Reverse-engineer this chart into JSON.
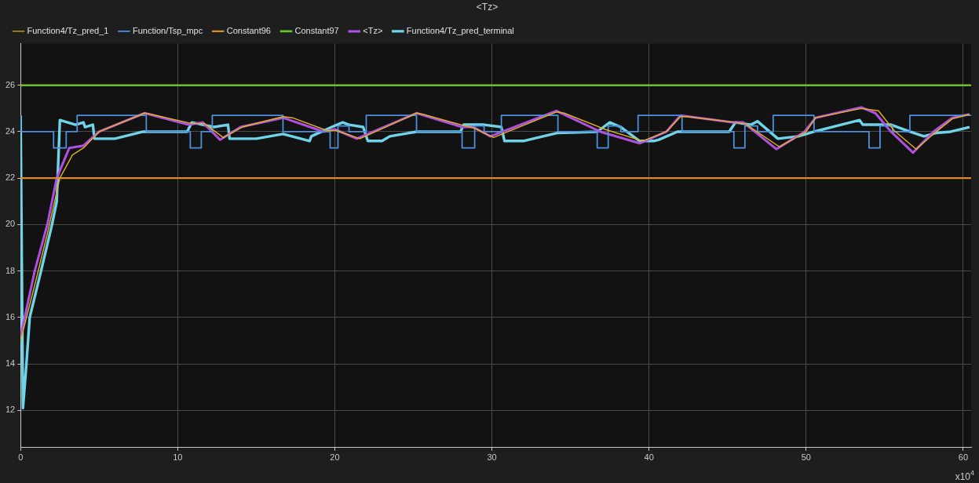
{
  "chart_data": {
    "type": "line",
    "title": "<Tz>",
    "annotations": [
      "x10$^{4}$"
    ],
    "xlim": [
      0,
      60.5
    ],
    "xticks": [
      0,
      10,
      20,
      30,
      40,
      50,
      60
    ],
    "ylim": [
      10.4,
      27.8
    ],
    "yticks": [
      12,
      14,
      16,
      18,
      20,
      22,
      24,
      26
    ],
    "grid": true,
    "legend": "top left",
    "marker": "none",
    "line_style": "solid",
    "series": [
      {
        "name": "Function4/Tz_pred_1",
        "color": "#e0b020",
        "x": [
          0,
          0.9,
          1.7,
          2.5,
          3.3,
          4.0,
          5.0,
          7.9,
          8.3,
          10.9,
          11.7,
          12.9,
          14.1,
          16.7,
          17.3,
          19.5,
          20.1,
          21.6,
          25.2,
          25.6,
          28.3,
          28.9,
          30.1,
          34.1,
          34.6,
          37.2,
          39.6,
          41.1,
          42.0,
          42.4,
          45.5,
          46.1,
          48.3,
          50.0,
          50.6,
          53.5,
          54.6,
          55.6,
          57.0,
          58.1,
          59.3,
          60.4
        ],
        "values": [
          15.0,
          17.4,
          19.6,
          22.0,
          23.0,
          23.3,
          24.0,
          24.8,
          24.75,
          24.35,
          24.35,
          23.75,
          24.2,
          24.65,
          24.6,
          24.05,
          24.05,
          23.7,
          24.8,
          24.75,
          24.25,
          24.15,
          23.75,
          24.85,
          24.8,
          24.1,
          23.6,
          24.0,
          24.65,
          24.65,
          24.4,
          24.35,
          23.35,
          24.0,
          24.6,
          25.0,
          24.9,
          24.05,
          23.25,
          23.9,
          24.55,
          24.75
        ]
      },
      {
        "name": "Function/Tsp_mpc",
        "color": "#4f8fdf",
        "type": "step",
        "x": [
          0,
          2.1,
          2.9,
          3.6,
          8.0,
          10.8,
          11.5,
          12.2,
          16.7,
          19.4,
          19.7,
          20.2,
          20.9,
          22.0,
          25.2,
          28.1,
          28.9,
          29.5,
          30.6,
          34.2,
          36.7,
          37.4,
          38.2,
          39.3,
          42.1,
          45.4,
          46.1,
          46.9,
          47.9,
          50.5,
          54.0,
          54.7,
          55.5,
          56.6,
          59.1,
          60.5
        ],
        "values": [
          24.7,
          24.0,
          23.3,
          24.0,
          24.7,
          24.0,
          23.3,
          24.0,
          24.7,
          24.0,
          24.0,
          23.3,
          24.25,
          24.0,
          24.7,
          24.0,
          23.3,
          24.25,
          24.0,
          24.7,
          24.0,
          23.3,
          24.25,
          24.0,
          24.7,
          24.0,
          23.3,
          24.25,
          24.0,
          24.7,
          24.0,
          23.3,
          24.25,
          24.0,
          24.7,
          24.7
        ]
      },
      {
        "name": "Constant96",
        "color": "#d98a2b",
        "x": [
          0,
          60.5
        ],
        "values": [
          22,
          22
        ]
      },
      {
        "name": "Constant97",
        "color": "#6bc030",
        "x": [
          0,
          60.5
        ],
        "values": [
          26,
          26
        ]
      },
      {
        "name": "<Tz>",
        "color": "#b050e0",
        "x": [
          0,
          0.9,
          1.7,
          2.3,
          3.1,
          4.0,
          5.0,
          7.9,
          10.7,
          11.6,
          12.7,
          14.0,
          16.7,
          19.3,
          20.0,
          21.4,
          25.2,
          28.1,
          28.8,
          29.9,
          34.1,
          36.9,
          39.4,
          41.1,
          42.0,
          45.3,
          46.0,
          48.1,
          49.9,
          50.6,
          53.5,
          54.4,
          55.4,
          56.8,
          58.1,
          59.3,
          60.4
        ],
        "values": [
          15.2,
          18.0,
          20.0,
          22.0,
          23.3,
          23.4,
          24.0,
          24.8,
          24.3,
          24.4,
          23.65,
          24.2,
          24.6,
          24.0,
          24.1,
          23.7,
          24.8,
          24.2,
          24.2,
          23.8,
          24.9,
          24.0,
          23.5,
          24.0,
          24.7,
          24.4,
          24.4,
          23.25,
          24.0,
          24.6,
          25.05,
          24.8,
          24.0,
          23.1,
          24.0,
          24.6,
          24.75
        ]
      },
      {
        "name": "Function4/Tz_pred_terminal",
        "color": "#6fd4e8",
        "x": [
          0,
          0.15,
          0.37,
          0.58,
          1.3,
          2.0,
          2.3,
          2.5,
          3.5,
          4.0,
          4.1,
          4.6,
          4.7,
          6.0,
          7.8,
          10.6,
          10.9,
          11.6,
          12.3,
          13.2,
          13.3,
          15.0,
          16.7,
          18.4,
          18.5,
          19.8,
          20.5,
          20.9,
          21.8,
          22.1,
          23.0,
          23.5,
          25.2,
          28.0,
          28.2,
          29.5,
          30.6,
          30.8,
          32.0,
          34.2,
          36.7,
          37.5,
          38.2,
          39.4,
          40.3,
          40.6,
          41.8,
          45.1,
          45.5,
          46.5,
          46.9,
          48.2,
          49.5,
          50.5,
          53.4,
          53.6,
          55.4,
          56.6,
          57.5,
          58.3,
          59.2,
          60.4
        ],
        "values": [
          24.7,
          12.1,
          14.0,
          16.0,
          18.0,
          20.0,
          21.0,
          24.5,
          24.3,
          24.4,
          24.2,
          24.3,
          23.7,
          23.7,
          24.0,
          24.0,
          24.4,
          24.3,
          24.2,
          24.3,
          23.7,
          23.7,
          23.9,
          23.6,
          23.8,
          24.2,
          24.4,
          24.3,
          24.2,
          23.6,
          23.6,
          23.8,
          24.0,
          24.0,
          24.3,
          24.3,
          24.2,
          23.6,
          23.6,
          23.95,
          24.0,
          24.4,
          24.2,
          23.6,
          23.6,
          23.65,
          24.0,
          24.0,
          24.4,
          24.3,
          24.45,
          23.7,
          23.8,
          24.0,
          24.5,
          24.3,
          24.3,
          24.0,
          23.8,
          23.95,
          24.0,
          24.2
        ]
      }
    ]
  }
}
